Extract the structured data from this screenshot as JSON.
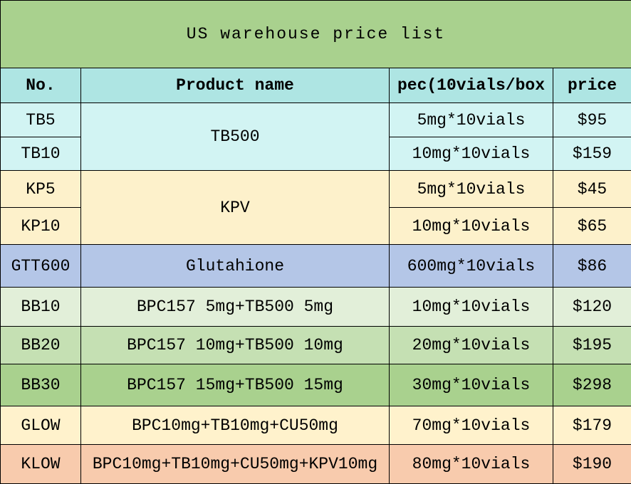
{
  "title": "US warehouse price list",
  "headers": {
    "no": "No.",
    "product": "Product name",
    "spec": "pec(10vials/box",
    "price": "price"
  },
  "rows": [
    {
      "no": "TB5",
      "product": "TB500",
      "spec": "5mg*10vials",
      "price": "$95"
    },
    {
      "no": "TB10",
      "product": "TB500",
      "spec": "10mg*10vials",
      "price": "$159"
    },
    {
      "no": "KP5",
      "product": "KPV",
      "spec": "5mg*10vials",
      "price": "$45"
    },
    {
      "no": "KP10",
      "product": "KPV",
      "spec": "10mg*10vials",
      "price": "$65"
    },
    {
      "no": "GTT600",
      "product": "Glutahione",
      "spec": "600mg*10vials",
      "price": "$86"
    },
    {
      "no": "BB10",
      "product": "BPC157 5mg+TB500 5mg",
      "spec": "10mg*10vials",
      "price": "$120"
    },
    {
      "no": "BB20",
      "product": "BPC157 10mg+TB500 10mg",
      "spec": "20mg*10vials",
      "price": "$195"
    },
    {
      "no": "BB30",
      "product": "BPC157 15mg+TB500 15mg",
      "spec": "30mg*10vials",
      "price": "$298"
    },
    {
      "no": "GLOW",
      "product": "BPC10mg+TB10mg+CU50mg",
      "spec": "70mg*10vials",
      "price": "$179"
    },
    {
      "no": "KLOW",
      "product": "BPC10mg+TB10mg+CU50mg+KPV10mg",
      "spec": "80mg*10vials",
      "price": "$190"
    }
  ],
  "colors": {
    "title_bg": "#a9d18e",
    "header_bg": "#aee5e3",
    "tb_bg": "#d2f4f3",
    "kp_bg": "#fdf1cb",
    "gtt_bg": "#b4c6e7",
    "bb10_bg": "#e2efd9",
    "bb20_bg": "#c5e0b3",
    "bb30_bg": "#a9d18e",
    "glow_bg": "#fff2cc",
    "klow_bg": "#f8cbad"
  }
}
